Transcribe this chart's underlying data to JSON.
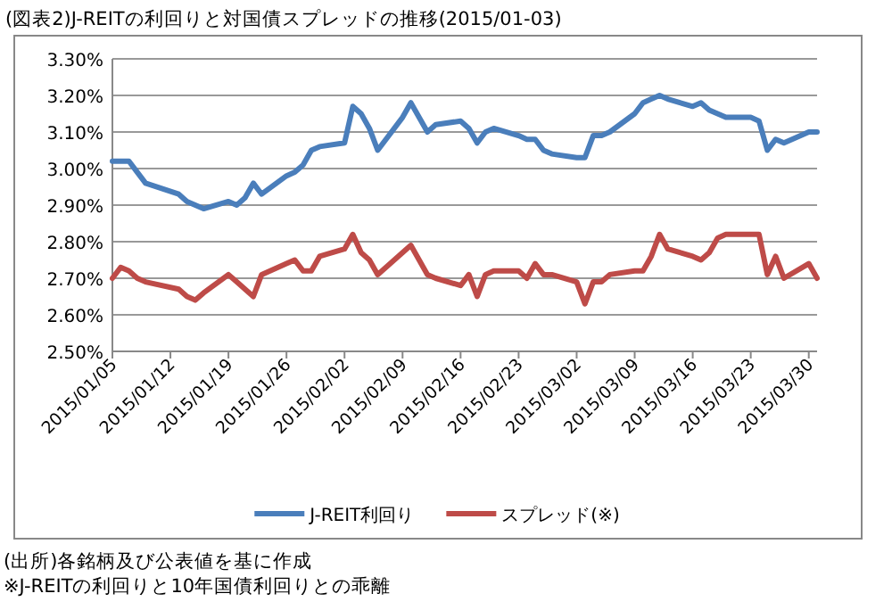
{
  "chart_data": {
    "type": "line",
    "title": "(図表2)J-REITの利回りと対国債スプレッドの推移(2015/01-03)",
    "x": [
      "2015-01-05",
      "2015-01-06",
      "2015-01-07",
      "2015-01-08",
      "2015-01-09",
      "2015-01-13",
      "2015-01-14",
      "2015-01-15",
      "2015-01-16",
      "2015-01-19",
      "2015-01-20",
      "2015-01-21",
      "2015-01-22",
      "2015-01-23",
      "2015-01-26",
      "2015-01-27",
      "2015-01-28",
      "2015-01-29",
      "2015-01-30",
      "2015-02-02",
      "2015-02-03",
      "2015-02-04",
      "2015-02-05",
      "2015-02-06",
      "2015-02-09",
      "2015-02-10",
      "2015-02-12",
      "2015-02-13",
      "2015-02-16",
      "2015-02-17",
      "2015-02-18",
      "2015-02-19",
      "2015-02-20",
      "2015-02-23",
      "2015-02-24",
      "2015-02-25",
      "2015-02-26",
      "2015-02-27",
      "2015-03-02",
      "2015-03-03",
      "2015-03-04",
      "2015-03-05",
      "2015-03-06",
      "2015-03-09",
      "2015-03-10",
      "2015-03-11",
      "2015-03-12",
      "2015-03-13",
      "2015-03-16",
      "2015-03-17",
      "2015-03-18",
      "2015-03-19",
      "2015-03-20",
      "2015-03-23",
      "2015-03-24",
      "2015-03-25",
      "2015-03-26",
      "2015-03-27",
      "2015-03-30",
      "2015-03-31"
    ],
    "series": [
      {
        "name": "J-REIT利回り",
        "color": "#4a7ebb",
        "values": [
          3.02,
          3.02,
          3.02,
          2.99,
          2.96,
          2.93,
          2.91,
          2.9,
          2.89,
          2.91,
          2.9,
          2.92,
          2.96,
          2.93,
          2.98,
          2.99,
          3.01,
          3.05,
          3.06,
          3.07,
          3.17,
          3.15,
          3.11,
          3.05,
          3.14,
          3.18,
          3.1,
          3.12,
          3.13,
          3.11,
          3.07,
          3.1,
          3.11,
          3.09,
          3.08,
          3.08,
          3.05,
          3.04,
          3.03,
          3.03,
          3.09,
          3.09,
          3.1,
          3.15,
          3.18,
          3.19,
          3.2,
          3.19,
          3.17,
          3.18,
          3.16,
          3.15,
          3.14,
          3.14,
          3.13,
          3.05,
          3.08,
          3.07,
          3.1,
          3.1
        ]
      },
      {
        "name": "スプレッド(※)",
        "color": "#be4b48",
        "values": [
          2.7,
          2.73,
          2.72,
          2.7,
          2.69,
          2.67,
          2.65,
          2.64,
          2.66,
          2.71,
          2.69,
          2.67,
          2.65,
          2.71,
          2.74,
          2.75,
          2.72,
          2.72,
          2.76,
          2.78,
          2.82,
          2.77,
          2.75,
          2.71,
          2.77,
          2.79,
          2.71,
          2.7,
          2.68,
          2.71,
          2.65,
          2.71,
          2.72,
          2.72,
          2.7,
          2.74,
          2.71,
          2.71,
          2.69,
          2.63,
          2.69,
          2.69,
          2.71,
          2.72,
          2.72,
          2.76,
          2.82,
          2.78,
          2.76,
          2.75,
          2.77,
          2.81,
          2.82,
          2.82,
          2.82,
          2.71,
          2.76,
          2.7,
          2.74,
          2.7
        ]
      }
    ],
    "xlim": [
      "2015-01-05",
      "2015-03-31"
    ],
    "xticks": [
      {
        "value": "2015-01-05",
        "label": "2015/01/05"
      },
      {
        "value": "2015-01-12",
        "label": "2015/01/12"
      },
      {
        "value": "2015-01-19",
        "label": "2015/01/19"
      },
      {
        "value": "2015-01-26",
        "label": "2015/01/26"
      },
      {
        "value": "2015-02-02",
        "label": "2015/02/02"
      },
      {
        "value": "2015-02-09",
        "label": "2015/02/09"
      },
      {
        "value": "2015-02-16",
        "label": "2015/02/16"
      },
      {
        "value": "2015-02-23",
        "label": "2015/02/23"
      },
      {
        "value": "2015-03-02",
        "label": "2015/03/02"
      },
      {
        "value": "2015-03-09",
        "label": "2015/03/09"
      },
      {
        "value": "2015-03-16",
        "label": "2015/03/16"
      },
      {
        "value": "2015-03-23",
        "label": "2015/03/23"
      },
      {
        "value": "2015-03-30",
        "label": "2015/03/30"
      }
    ],
    "ylim": [
      2.5,
      3.3
    ],
    "yticks": [
      {
        "value": 2.5,
        "label": "2.50%"
      },
      {
        "value": 2.6,
        "label": "2.60%"
      },
      {
        "value": 2.7,
        "label": "2.70%"
      },
      {
        "value": 2.8,
        "label": "2.80%"
      },
      {
        "value": 2.9,
        "label": "2.90%"
      },
      {
        "value": 3.0,
        "label": "3.00%"
      },
      {
        "value": 3.1,
        "label": "3.10%"
      },
      {
        "value": 3.2,
        "label": "3.20%"
      },
      {
        "value": 3.3,
        "label": "3.30%"
      }
    ],
    "grid": "y",
    "legend": "bottom",
    "marker": "none",
    "line_style": "solid",
    "annotations": [
      "(出所)各銘柄及び公表値を基に作成",
      "※J-REITの利回りと10年国債利回りとの乖離"
    ]
  }
}
